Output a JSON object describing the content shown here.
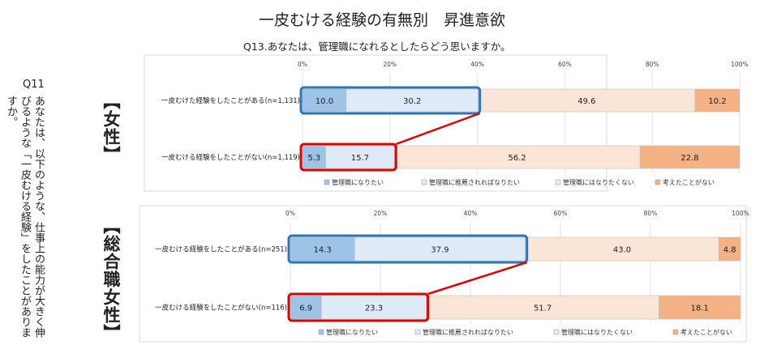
{
  "title": "一皮むける経験の有無別　昇進意欲",
  "subtitle": "Q13.あなたは、管理職になれるとしたらどう思いますか。",
  "question_label": "Q11",
  "question_text": "あなたは、以下のような、仕事上の能力が大きく伸びるような「一皮むける経験」をしたことがありますか。",
  "colors": {
    "series": [
      "#9dc3e6",
      "#deebf7",
      "#fbe5d6",
      "#f4b183"
    ],
    "highlight_blue": "#2e75b6",
    "highlight_red": "#e00000",
    "connector": "#e00000"
  },
  "chart_data": [
    {
      "type": "bar",
      "orientation": "horizontal-stacked-100",
      "section_label": "【女性】",
      "x_ticks": [
        "0%",
        "20%",
        "40%",
        "60%",
        "80%",
        "100%"
      ],
      "xlim": [
        0,
        100
      ],
      "categories": [
        "一皮むけた経験をしたことがある(n=1,131)",
        "一皮むける経験をしたことがない(n=1,119)"
      ],
      "series": [
        {
          "name": "管理職になりたい",
          "values": [
            10.0,
            5.3
          ]
        },
        {
          "name": "管理職に推薦されればなりたい",
          "values": [
            30.2,
            15.7
          ]
        },
        {
          "name": "管理職にはなりたくない",
          "values": [
            49.6,
            56.2
          ]
        },
        {
          "name": "考えたことがない",
          "values": [
            10.2,
            22.8
          ]
        }
      ],
      "value_labels": [
        [
          "10.0",
          "30.2",
          "49.6",
          "10.2"
        ],
        [
          "5.3",
          "15.7",
          "56.2",
          "22.8"
        ]
      ],
      "legend_placement": "bottom"
    },
    {
      "type": "bar",
      "orientation": "horizontal-stacked-100",
      "section_label": "【総合職女性】",
      "x_ticks": [
        "0%",
        "20%",
        "40%",
        "60%",
        "80%",
        "100%"
      ],
      "xlim": [
        0,
        100
      ],
      "categories": [
        "一皮むける経験をしたことがある(n=251)",
        "一皮むける経験をしたことがない(n=116)"
      ],
      "series": [
        {
          "name": "管理職になりたい",
          "values": [
            14.3,
            6.9
          ]
        },
        {
          "name": "管理職に推薦されればなりたい",
          "values": [
            37.9,
            23.3
          ]
        },
        {
          "name": "管理職にはなりたくない",
          "values": [
            43.0,
            51.7
          ]
        },
        {
          "name": "考えたことがない",
          "values": [
            4.8,
            18.1
          ]
        }
      ],
      "value_labels": [
        [
          "14.3",
          "37.9",
          "43.0",
          "4.8"
        ],
        [
          "6.9",
          "23.3",
          "51.7",
          "18.1"
        ]
      ],
      "legend_placement": "bottom"
    }
  ]
}
